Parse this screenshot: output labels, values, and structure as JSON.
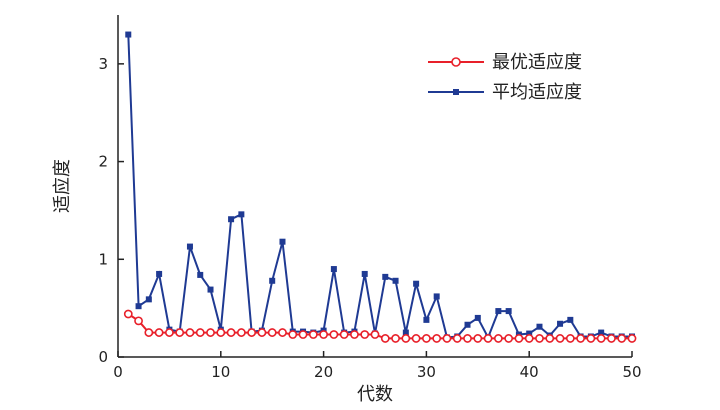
{
  "chart_data": {
    "type": "line",
    "xlabel": "代数",
    "ylabel": "适应度",
    "xlim": [
      0,
      50
    ],
    "ylim": [
      0,
      3.5
    ],
    "xticks": [
      0,
      10,
      20,
      30,
      40,
      50
    ],
    "yticks": [
      0,
      1,
      2,
      3
    ],
    "grid": false,
    "legend_position": "top-right",
    "x": [
      1,
      2,
      3,
      4,
      5,
      6,
      7,
      8,
      9,
      10,
      11,
      12,
      13,
      14,
      15,
      16,
      17,
      18,
      19,
      20,
      21,
      22,
      23,
      24,
      25,
      26,
      27,
      28,
      29,
      30,
      31,
      32,
      33,
      34,
      35,
      36,
      37,
      38,
      39,
      40,
      41,
      42,
      43,
      44,
      45,
      46,
      47,
      48,
      49,
      50
    ],
    "series": [
      {
        "name": "最优适应度",
        "color": "#e8202a",
        "marker": "circle",
        "values": [
          0.44,
          0.37,
          0.25,
          0.25,
          0.25,
          0.25,
          0.25,
          0.25,
          0.25,
          0.25,
          0.25,
          0.25,
          0.25,
          0.25,
          0.25,
          0.25,
          0.23,
          0.23,
          0.23,
          0.23,
          0.23,
          0.23,
          0.23,
          0.23,
          0.23,
          0.19,
          0.19,
          0.19,
          0.19,
          0.19,
          0.19,
          0.19,
          0.19,
          0.19,
          0.19,
          0.19,
          0.19,
          0.19,
          0.19,
          0.19,
          0.19,
          0.19,
          0.19,
          0.19,
          0.19,
          0.19,
          0.19,
          0.19,
          0.19,
          0.19
        ]
      },
      {
        "name": "平均适应度",
        "color": "#1f3a93",
        "marker": "square",
        "values": [
          3.3,
          0.52,
          0.59,
          0.85,
          0.28,
          0.26,
          1.13,
          0.84,
          0.69,
          0.28,
          1.41,
          1.46,
          0.26,
          0.27,
          0.78,
          1.18,
          0.26,
          0.26,
          0.25,
          0.27,
          0.9,
          0.25,
          0.26,
          0.85,
          0.24,
          0.82,
          0.78,
          0.25,
          0.75,
          0.38,
          0.62,
          0.2,
          0.21,
          0.33,
          0.4,
          0.2,
          0.47,
          0.47,
          0.23,
          0.24,
          0.31,
          0.22,
          0.34,
          0.38,
          0.21,
          0.21,
          0.25,
          0.21,
          0.21,
          0.21
        ]
      }
    ]
  }
}
